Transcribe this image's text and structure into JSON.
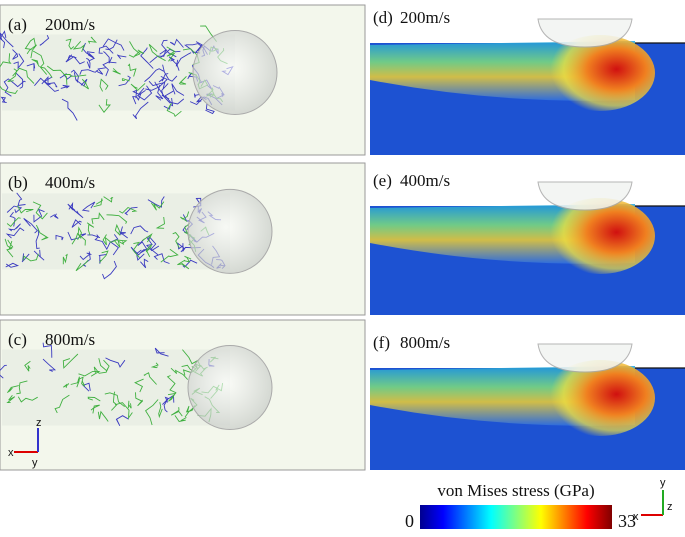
{
  "panels": [
    {
      "label": "(a)",
      "speed": "200m/s"
    },
    {
      "label": "(b)",
      "speed": "400m/s"
    },
    {
      "label": "(c)",
      "speed": "800m/s"
    },
    {
      "label": "(d)",
      "speed": "200m/s"
    },
    {
      "label": "(e)",
      "speed": "400m/s"
    },
    {
      "label": "(f)",
      "speed": "800m/s"
    }
  ],
  "axes_left": {
    "x": "x",
    "y": "y",
    "z": "z"
  },
  "axes_right": {
    "x": "x",
    "y": "y",
    "z": "z"
  },
  "colorbar": {
    "title": "von Mises stress (GPa)",
    "lim": [
      0,
      33
    ],
    "ticks": [
      0,
      33
    ]
  }
}
